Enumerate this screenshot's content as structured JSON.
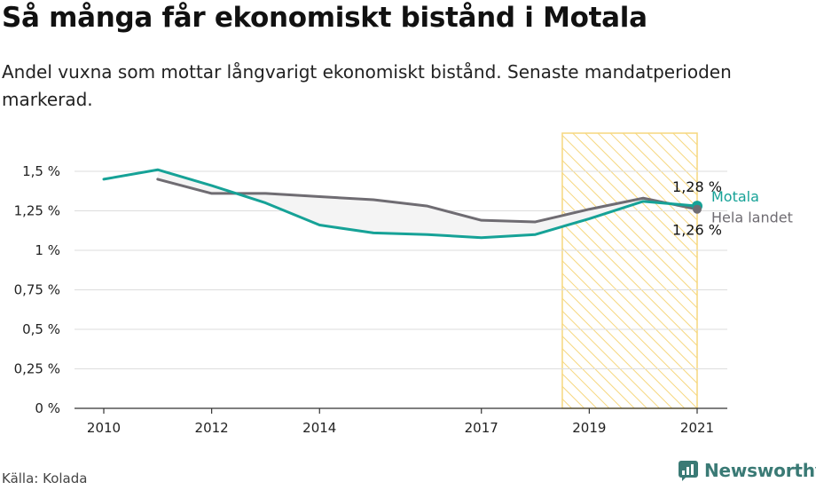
{
  "title": "Så många får ekonomiskt bistånd i Motala",
  "subtitle": "Andel vuxna som mottar långvarigt ekonomiskt bistånd. Senaste mandatperioden markerad.",
  "source": "Källa: Kolada",
  "brand": "Newsworthy",
  "colors": {
    "motala": "#16a297",
    "riket": "#6f6c72",
    "highlight_stroke": "#f6d77e",
    "grid": "#dddddd"
  },
  "chart_data": {
    "type": "line",
    "x": [
      2010,
      2011,
      2012,
      2013,
      2014,
      2015,
      2016,
      2017,
      2018,
      2019,
      2020,
      2021
    ],
    "x_tick_labels": [
      "2010",
      "2012",
      "2014",
      "2017",
      "2019",
      "2021"
    ],
    "x_tick_values": [
      2010,
      2012,
      2014,
      2017,
      2019,
      2021
    ],
    "y_tick_labels": [
      "0 %",
      "0,25 %",
      "0,5 %",
      "0,75 %",
      "1 %",
      "1,25 %",
      "1,5 %"
    ],
    "y_tick_values": [
      0,
      0.25,
      0.5,
      0.75,
      1,
      1.25,
      1.5
    ],
    "ylim": [
      0,
      1.5
    ],
    "series": [
      {
        "key": "motala",
        "name": "Motala",
        "values": [
          1.45,
          1.51,
          1.41,
          1.3,
          1.16,
          1.11,
          1.1,
          1.08,
          1.1,
          1.2,
          1.31,
          1.28
        ],
        "end_label": "1,28 %"
      },
      {
        "key": "riket",
        "name": "Hela landet",
        "values": [
          null,
          1.45,
          1.36,
          1.36,
          1.34,
          1.32,
          1.28,
          1.19,
          1.18,
          1.26,
          1.33,
          1.26
        ],
        "end_label": "1,26 %"
      }
    ],
    "highlight": {
      "from": 2018.5,
      "to": 2021
    },
    "grid": true
  }
}
